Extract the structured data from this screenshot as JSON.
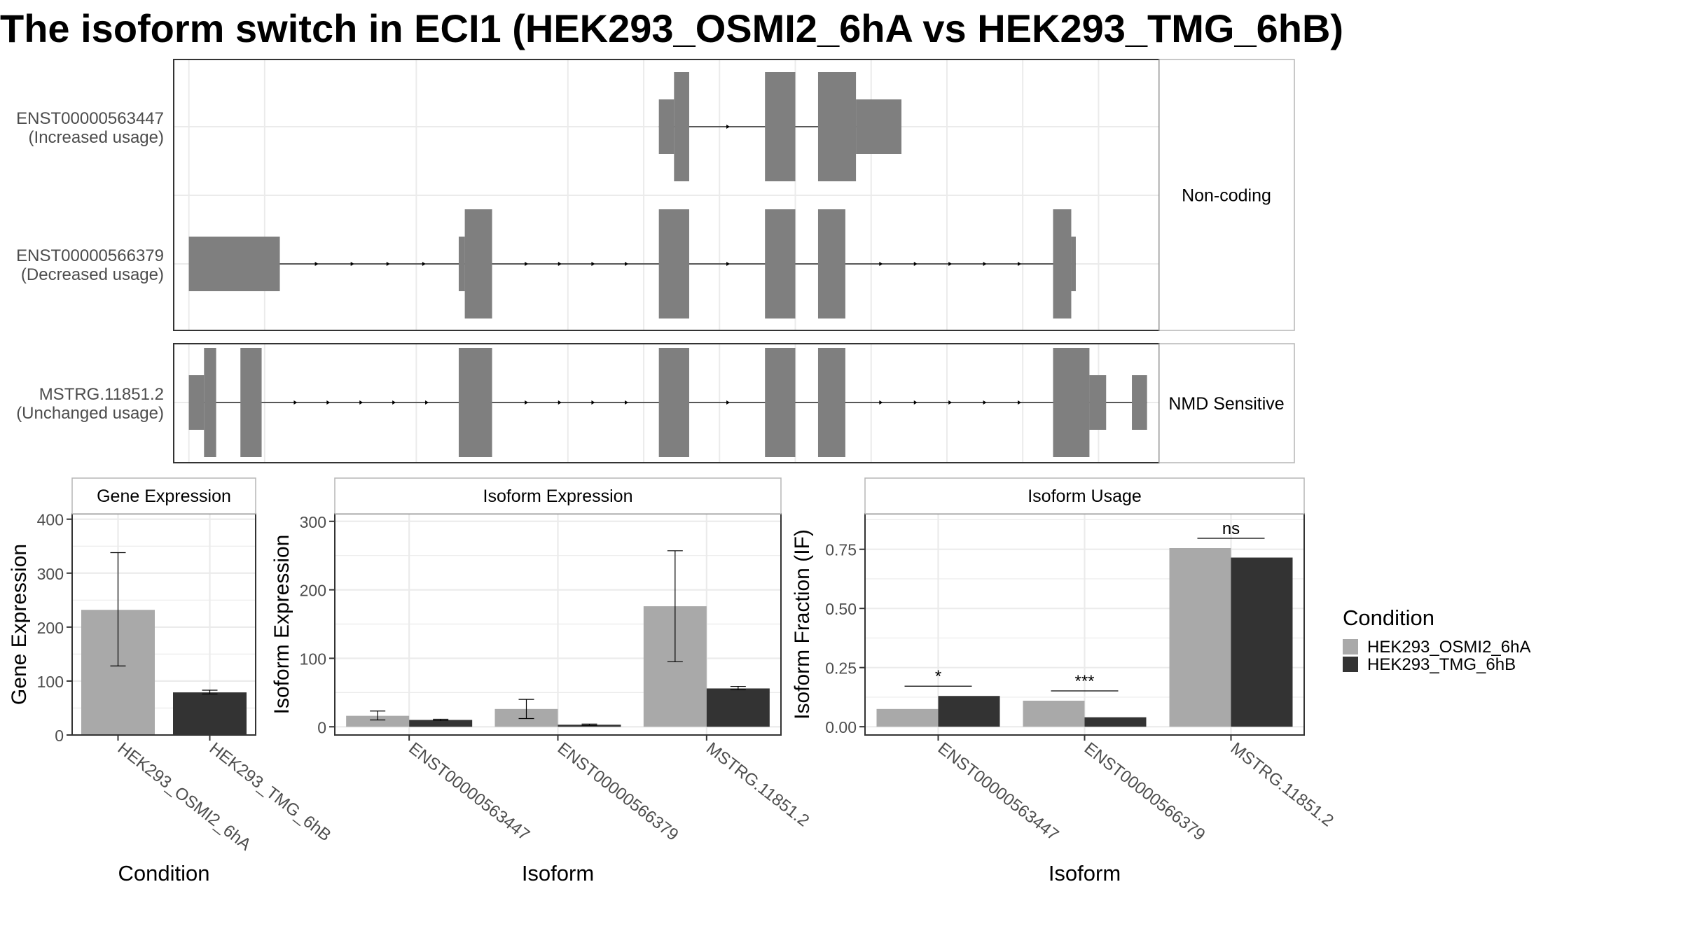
{
  "title": "The isoform switch in ECI1 (HEK293_OSMI2_6hA vs HEK293_TMG_6hB)",
  "colors": {
    "exon": "#7f7f7f",
    "cond_a": "#a9a9a9",
    "cond_b": "#333333",
    "grid": "#ebebeb",
    "frame": "#333333",
    "strip_bg": "#ffffff",
    "strip_border": "#b5b5b5"
  },
  "structure": {
    "facets": [
      {
        "label": "Non-coding",
        "isoforms": [
          {
            "id": "ENST00000563447",
            "usage": "(Increased usage)",
            "exons": [
              {
                "start": 610,
                "end": 620,
                "size": "small"
              },
              {
                "start": 620,
                "end": 630,
                "size": "large"
              },
              {
                "start": 680,
                "end": 700,
                "size": "large"
              },
              {
                "start": 715,
                "end": 740,
                "size": "large"
              },
              {
                "start": 740,
                "end": 770,
                "size": "small"
              }
            ]
          },
          {
            "id": "ENST00000566379",
            "usage": "(Decreased usage)",
            "exons": [
              {
                "start": 300,
                "end": 360,
                "size": "small"
              },
              {
                "start": 478,
                "end": 482,
                "size": "small"
              },
              {
                "start": 482,
                "end": 500,
                "size": "large"
              },
              {
                "start": 610,
                "end": 630,
                "size": "large"
              },
              {
                "start": 680,
                "end": 700,
                "size": "large"
              },
              {
                "start": 715,
                "end": 733,
                "size": "large"
              },
              {
                "start": 870,
                "end": 882,
                "size": "large"
              },
              {
                "start": 882,
                "end": 885,
                "size": "small"
              }
            ]
          }
        ]
      },
      {
        "label": "NMD Sensitive",
        "isoforms": [
          {
            "id": "MSTRG.11851.2",
            "usage": "(Unchanged usage)",
            "exons": [
              {
                "start": 300,
                "end": 310,
                "size": "small"
              },
              {
                "start": 310,
                "end": 318,
                "size": "large"
              },
              {
                "start": 334,
                "end": 348,
                "size": "large"
              },
              {
                "start": 478,
                "end": 500,
                "size": "large"
              },
              {
                "start": 610,
                "end": 630,
                "size": "large"
              },
              {
                "start": 680,
                "end": 700,
                "size": "large"
              },
              {
                "start": 715,
                "end": 733,
                "size": "large"
              },
              {
                "start": 870,
                "end": 894,
                "size": "large"
              },
              {
                "start": 894,
                "end": 905,
                "size": "small"
              },
              {
                "start": 922,
                "end": 932,
                "size": "small"
              }
            ]
          }
        ]
      }
    ]
  },
  "chart_data": [
    {
      "type": "bar",
      "title": "Gene Expression",
      "xlabel": "Condition",
      "ylabel": "Gene Expression",
      "ylim": [
        0,
        410
      ],
      "yticks": [
        0,
        100,
        200,
        300,
        400
      ],
      "categories": [
        "HEK293_OSMI2_6hA",
        "HEK293_TMG_6hB"
      ],
      "series": [
        {
          "name": "HEK293_OSMI2_6hA",
          "values": [
            232,
            null
          ],
          "err_low": [
            128,
            null
          ],
          "err_high": [
            338,
            null
          ]
        },
        {
          "name": "HEK293_TMG_6hB",
          "values": [
            null,
            79
          ],
          "err_low": [
            null,
            76
          ],
          "err_high": [
            null,
            83
          ]
        }
      ]
    },
    {
      "type": "bar",
      "title": "Isoform Expression",
      "xlabel": "Isoform",
      "ylabel": "Isoform Expression",
      "ylim": [
        -12,
        311
      ],
      "yticks": [
        0,
        100,
        200,
        300
      ],
      "categories": [
        "ENST00000563447",
        "ENST00000566379",
        "MSTRG.11851.2"
      ],
      "series": [
        {
          "name": "HEK293_OSMI2_6hA",
          "values": [
            16,
            26,
            176
          ],
          "err_low": [
            10,
            12,
            95
          ],
          "err_high": [
            23,
            40,
            257
          ]
        },
        {
          "name": "HEK293_TMG_6hB",
          "values": [
            10,
            3,
            56
          ],
          "err_low": [
            9,
            2,
            54
          ],
          "err_high": [
            11,
            4,
            59
          ]
        }
      ]
    },
    {
      "type": "bar",
      "title": "Isoform Usage",
      "xlabel": "Isoform",
      "ylabel": "Isoform Fraction (IF)",
      "ylim": [
        -0.035,
        0.9
      ],
      "yticks": [
        0,
        0.25,
        0.5,
        0.75
      ],
      "ytick_labels": [
        "0.00",
        "0.25",
        "0.50",
        "0.75"
      ],
      "categories": [
        "ENST00000563447",
        "ENST00000566379",
        "MSTRG.11851.2"
      ],
      "series": [
        {
          "name": "HEK293_OSMI2_6hA",
          "values": [
            0.075,
            0.11,
            0.755
          ]
        },
        {
          "name": "HEK293_TMG_6hB",
          "values": [
            0.13,
            0.04,
            0.715
          ]
        }
      ],
      "significance": [
        "*",
        "***",
        "ns"
      ]
    }
  ],
  "legend": {
    "title": "Condition",
    "items": [
      "HEK293_OSMI2_6hA",
      "HEK293_TMG_6hB"
    ]
  }
}
